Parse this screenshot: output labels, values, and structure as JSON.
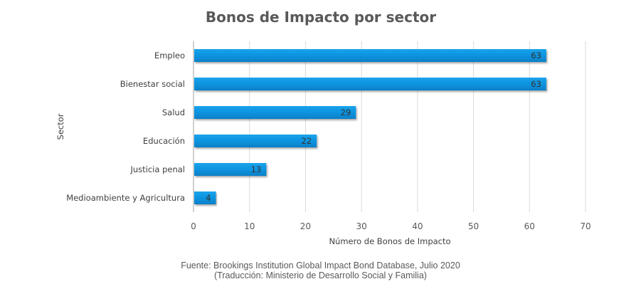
{
  "chart_data": {
    "type": "bar",
    "orientation": "horizontal",
    "title": "Bonos de Impacto por sector",
    "xlabel": "Número de Bonos de Impacto",
    "ylabel": "Sector",
    "categories": [
      "Empleo",
      "Bienestar social",
      "Salud",
      "Educación",
      "Justicia penal",
      "Medioambiente y Agricultura"
    ],
    "values": [
      63,
      63,
      29,
      22,
      13,
      4
    ],
    "xlim": [
      0,
      70
    ],
    "xticks": [
      0,
      10,
      20,
      30,
      40,
      50,
      60,
      70
    ],
    "grid": true,
    "legend": "none",
    "bar_color": "#0a8fd8",
    "data_labels": true
  },
  "source": {
    "line1": "Fuente: Brookings Institution Global Impact Bond Database, Julio 2020",
    "line2": "(Traducción: Ministerio de Desarrollo Social y Familia)"
  }
}
